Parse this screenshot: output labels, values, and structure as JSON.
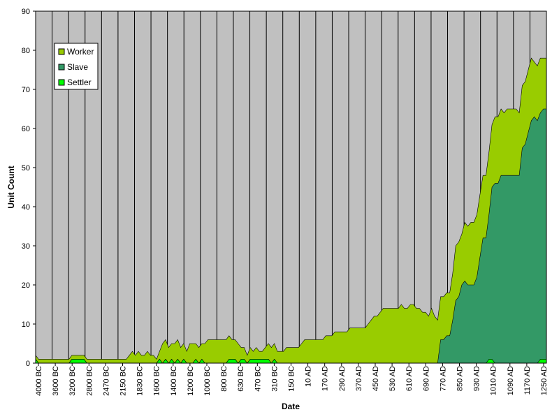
{
  "chart_data": {
    "type": "area",
    "stacked": true,
    "xlabel": "Date",
    "ylabel": "Unit Count",
    "ylim": [
      0,
      90
    ],
    "y_ticks": [
      0,
      10,
      20,
      30,
      40,
      50,
      60,
      70,
      80,
      90
    ],
    "x_tick_labels": [
      "4000 BC",
      "3600 BC",
      "3200 BC",
      "2800 BC",
      "2470 BC",
      "2150 BC",
      "1830 BC",
      "1600 BC",
      "1400 BC",
      "1200 BC",
      "1000 BC",
      "800 BC",
      "630 BC",
      "470 BC",
      "310 BC",
      "150 BC",
      "10 AD",
      "170 AD",
      "290 AD",
      "370 AD",
      "450 AD",
      "530 AD",
      "610 AD",
      "690 AD",
      "770 AD",
      "850 AD",
      "930 AD",
      "1010 AD",
      "1090 AD",
      "1170 AD",
      "1250 AD"
    ],
    "grid": true,
    "legend_position": "top-left",
    "plot_background": "#c0c0c0",
    "series": [
      {
        "name": "Worker",
        "color": "#99cc00",
        "values": [
          1,
          1,
          1,
          1,
          1,
          1,
          1,
          1,
          1,
          1,
          1,
          1,
          1,
          1,
          1,
          1,
          1,
          1,
          1,
          1,
          1,
          1,
          1,
          1,
          1,
          1,
          1,
          1,
          1,
          1,
          1,
          2,
          3,
          2,
          3,
          2,
          2,
          3,
          2,
          2,
          1,
          2,
          5,
          5,
          4,
          4,
          5,
          5,
          4,
          4,
          3,
          5,
          5,
          4,
          4,
          4,
          5,
          6,
          6,
          6,
          6,
          6,
          6,
          6,
          6,
          5,
          5,
          5,
          3,
          3,
          2,
          3,
          2,
          3,
          2,
          2,
          3,
          4,
          4,
          4,
          3,
          3,
          3,
          4,
          4,
          4,
          4,
          4,
          5,
          6,
          6,
          6,
          6,
          6,
          6,
          6,
          7,
          7,
          7,
          8,
          8,
          8,
          8,
          8,
          9,
          9,
          9,
          9,
          9,
          9,
          10,
          11,
          12,
          12,
          13,
          14,
          14,
          14,
          14,
          14,
          14,
          15,
          14,
          14,
          15,
          15,
          14,
          14,
          13,
          13,
          12,
          14,
          12,
          11,
          11,
          11,
          11,
          11,
          12,
          14,
          14,
          13,
          15,
          15,
          16,
          16,
          16,
          16,
          16,
          16,
          16,
          16,
          17,
          17,
          17,
          16,
          17,
          17,
          17,
          17,
          16,
          16,
          16,
          16,
          16,
          14,
          14,
          14,
          13,
          13
        ]
      },
      {
        "name": "Slave",
        "color": "#339966",
        "values": [
          0,
          0,
          0,
          0,
          0,
          0,
          0,
          0,
          0,
          0,
          0,
          0,
          0,
          0,
          0,
          0,
          0,
          0,
          0,
          0,
          0,
          0,
          0,
          0,
          0,
          0,
          0,
          0,
          0,
          0,
          0,
          0,
          0,
          0,
          0,
          0,
          0,
          0,
          0,
          0,
          0,
          0,
          0,
          0,
          0,
          0,
          0,
          0,
          0,
          0,
          0,
          0,
          0,
          0,
          0,
          0,
          0,
          0,
          0,
          0,
          0,
          0,
          0,
          0,
          0,
          0,
          0,
          0,
          0,
          0,
          0,
          0,
          0,
          0,
          0,
          0,
          0,
          0,
          0,
          0,
          0,
          0,
          0,
          0,
          0,
          0,
          0,
          0,
          0,
          0,
          0,
          0,
          0,
          0,
          0,
          0,
          0,
          0,
          0,
          0,
          0,
          0,
          0,
          0,
          0,
          0,
          0,
          0,
          0,
          0,
          0,
          0,
          0,
          0,
          0,
          0,
          0,
          0,
          0,
          0,
          0,
          0,
          0,
          0,
          0,
          0,
          0,
          0,
          0,
          0,
          0,
          0,
          0,
          0,
          6,
          6,
          7,
          7,
          11,
          16,
          17,
          20,
          21,
          20,
          20,
          20,
          22,
          27,
          32,
          32,
          37,
          44,
          46,
          46,
          48,
          48,
          48,
          48,
          48,
          48,
          48,
          55,
          56,
          59,
          62,
          63,
          62,
          63,
          64,
          64,
          62,
          66,
          66,
          66,
          66,
          66,
          66,
          66,
          66,
          66
        ]
      },
      {
        "name": "Settler",
        "color": "#00ff00",
        "values": [
          1,
          0,
          0,
          0,
          0,
          0,
          0,
          0,
          0,
          0,
          0,
          0,
          1,
          1,
          1,
          1,
          1,
          0,
          0,
          0,
          0,
          0,
          0,
          0,
          0,
          0,
          0,
          0,
          0,
          0,
          0,
          0,
          0,
          0,
          0,
          0,
          0,
          0,
          0,
          0,
          0,
          1,
          0,
          1,
          0,
          1,
          0,
          1,
          0,
          1,
          0,
          0,
          0,
          1,
          0,
          1,
          0,
          0,
          0,
          0,
          0,
          0,
          0,
          0,
          1,
          1,
          1,
          0,
          1,
          1,
          0,
          1,
          1,
          1,
          1,
          1,
          1,
          1,
          0,
          1,
          0,
          0,
          0,
          0,
          0,
          0,
          0,
          0,
          0,
          0,
          0,
          0,
          0,
          0,
          0,
          0,
          0,
          0,
          0,
          0,
          0,
          0,
          0,
          0,
          0,
          0,
          0,
          0,
          0,
          0,
          0,
          0,
          0,
          0,
          0,
          0,
          0,
          0,
          0,
          0,
          0,
          0,
          0,
          0,
          0,
          0,
          0,
          0,
          0,
          0,
          0,
          0,
          0,
          0,
          0,
          0,
          0,
          0,
          0,
          0,
          0,
          0,
          0,
          0,
          0,
          0,
          0,
          0,
          0,
          0,
          1,
          1,
          0,
          0,
          0,
          0,
          0,
          0,
          0,
          0,
          0,
          0,
          0,
          0,
          0,
          0,
          0,
          1,
          1,
          1,
          1,
          0,
          0,
          0,
          2,
          0,
          0,
          0,
          1,
          0
        ]
      }
    ],
    "legend": [
      {
        "name": "Worker",
        "color": "#99cc00"
      },
      {
        "name": "Slave",
        "color": "#339966"
      },
      {
        "name": "Settler",
        "color": "#00ff00"
      }
    ]
  }
}
